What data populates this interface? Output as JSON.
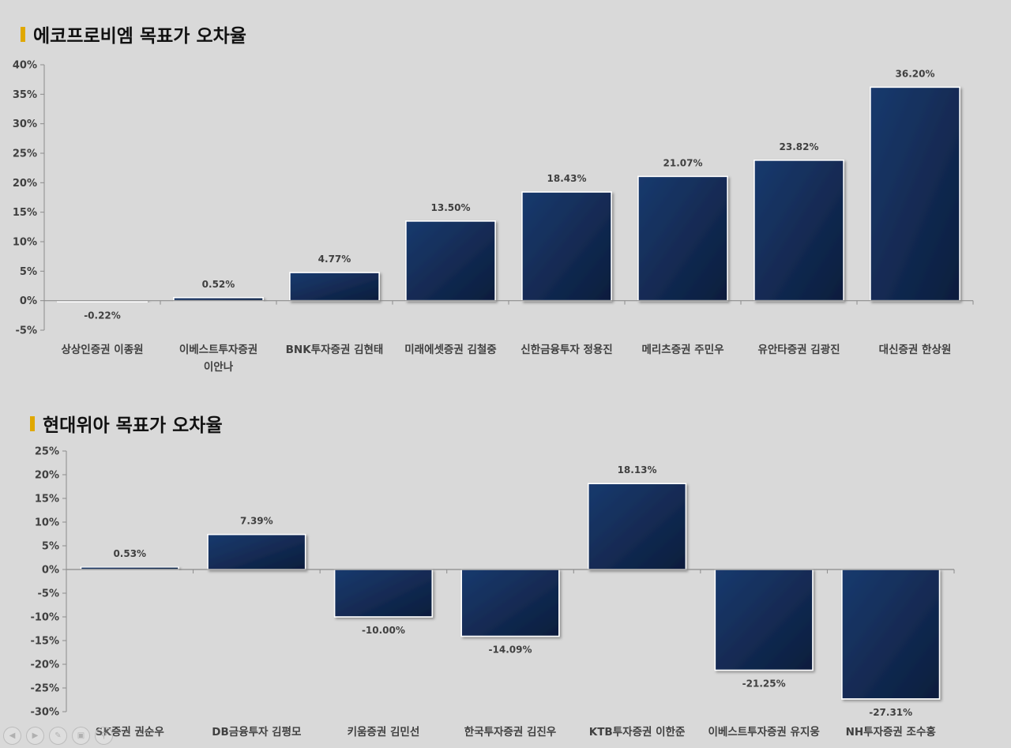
{
  "chart_data": [
    {
      "type": "bar",
      "title": "에코프로비엠 목표가 오차율",
      "categories": [
        "상상인증권 이종원",
        "이베스트투자증권 이안나",
        "BNK투자증권 김현태",
        "미래에셋증권 김철중",
        "신한금융투자 정용진",
        "메리츠증권 주민우",
        "유안타증권 김광진",
        "대신증권 한상원"
      ],
      "values": [
        -0.22,
        0.52,
        4.77,
        13.5,
        18.43,
        21.07,
        23.82,
        36.2
      ],
      "data_labels": [
        "-0.22%",
        "0.52%",
        "4.77%",
        "13.50%",
        "18.43%",
        "21.07%",
        "23.82%",
        "36.20%"
      ],
      "y_ticks": [
        "40%",
        "35%",
        "30%",
        "25%",
        "20%",
        "15%",
        "10%",
        "5%",
        "0%",
        "-5%"
      ],
      "ylim": [
        -5,
        40
      ],
      "xlabel": "",
      "ylabel": "",
      "grid": false,
      "legend": "none"
    },
    {
      "type": "bar",
      "title": "현대위아 목표가 오차율",
      "categories": [
        "SK증권 권순우",
        "DB금융투자 김평모",
        "키움증권 김민선",
        "한국투자증권 김진우",
        "KTB투자증권 이한준",
        "이베스트투자증권 유지웅",
        "NH투자증권 조수홍"
      ],
      "values": [
        0.53,
        7.39,
        -10.0,
        -14.09,
        18.13,
        -21.25,
        -27.31
      ],
      "data_labels": [
        "0.53%",
        "7.39%",
        "-10.00%",
        "-14.09%",
        "18.13%",
        "-21.25%",
        "-27.31%"
      ],
      "y_ticks": [
        "25%",
        "20%",
        "15%",
        "10%",
        "5%",
        "0%",
        "-5%",
        "-10%",
        "-15%",
        "-20%",
        "-25%",
        "-30%"
      ],
      "ylim": [
        -30,
        25
      ],
      "xlabel": "",
      "ylabel": "",
      "grid": false,
      "legend": "none"
    }
  ],
  "colors": {
    "background": "#d9d9d9",
    "bar_top": "#1a3a6e",
    "bar_bottom": "#0c1d3c",
    "title_marker": "#e0a800",
    "axis": "#8c8c8c",
    "text": "#404040"
  },
  "nav_icons": [
    "previous-icon",
    "next-icon",
    "pen-icon",
    "slides-icon",
    "zoom-icon"
  ]
}
